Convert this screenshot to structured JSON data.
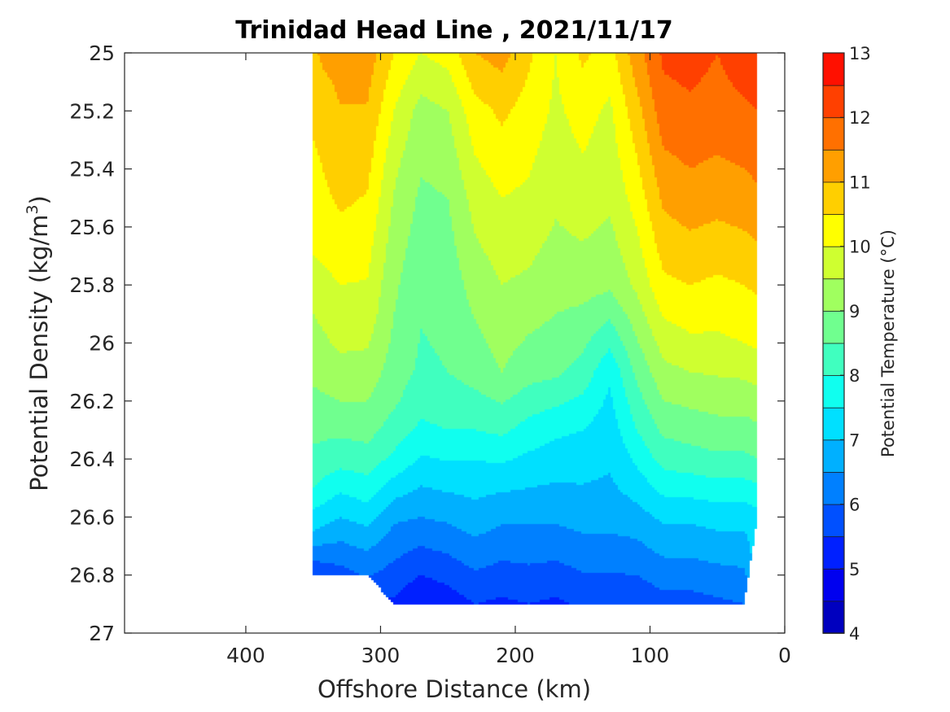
{
  "chart_data": {
    "type": "contour",
    "title": "Trinidad Head Line , 2021/11/17",
    "xlabel": "Offshore Distance (km)",
    "ylabel_main": "Potential Density (kg/m",
    "ylabel_sup": "3",
    "ylabel_close": ")",
    "colorbar_label": "Potential Temperature (°C)",
    "x_reversed": true,
    "xlim": [
      0,
      490
    ],
    "ylim": [
      25,
      27
    ],
    "y_reversed": true,
    "xticks": [
      400,
      300,
      200,
      100,
      0
    ],
    "xtick_labels": [
      "400",
      "300",
      "200",
      "100",
      "0"
    ],
    "yticks": [
      25,
      25.2,
      25.4,
      25.6,
      25.8,
      26,
      26.2,
      26.4,
      26.6,
      26.8,
      27
    ],
    "ytick_labels": [
      "25",
      "25.2",
      "25.4",
      "25.6",
      "25.8",
      "26",
      "26.2",
      "26.4",
      "26.6",
      "26.8",
      "27"
    ],
    "colorbar_range": [
      4,
      13
    ],
    "colorbar_ticks": [
      "4",
      "5",
      "6",
      "7",
      "8",
      "9",
      "10",
      "11",
      "12",
      "13"
    ],
    "level_step": 0.5,
    "colormap": "jet",
    "colors": [
      "#00008f",
      "#0000bf",
      "#0000ef",
      "#0020ff",
      "#0050ff",
      "#0080ff",
      "#00b0ff",
      "#00e0ff",
      "#10ffef",
      "#40ffbf",
      "#70ff8f",
      "#a0ff5f",
      "#cfff30",
      "#ffff00",
      "#ffcf00",
      "#ff9f00",
      "#ff7000",
      "#ff4000",
      "#ff1000",
      "#df0000",
      "#af0000"
    ],
    "data_extent": {
      "stations_km": [
        350,
        330,
        310,
        290,
        270,
        250,
        230,
        210,
        190,
        170,
        150,
        130,
        110,
        90,
        70,
        50,
        30,
        20
      ],
      "max_density_at_station": [
        26.8,
        26.8,
        26.8,
        26.9,
        26.9,
        26.9,
        26.9,
        26.9,
        26.9,
        26.9,
        26.9,
        26.9,
        26.9,
        26.9,
        26.9,
        26.9,
        26.9,
        26.6
      ]
    },
    "temperature_profiles": [
      {
        "x": 350,
        "density": [
          25.0,
          25.3,
          25.7,
          25.9,
          26.15,
          26.35,
          26.5,
          26.65,
          26.75,
          26.8
        ],
        "temperature": [
          10.9,
          10.5,
          10.0,
          9.5,
          9.0,
          8.5,
          8.0,
          7.0,
          6.0,
          5.7
        ]
      },
      {
        "x": 330,
        "density": [
          25.0,
          25.1,
          25.5,
          25.8,
          26.0,
          26.2,
          26.4,
          26.6,
          26.8
        ],
        "temperature": [
          11.5,
          11.1,
          10.6,
          10.0,
          9.6,
          9.0,
          8.2,
          7.0,
          5.8
        ]
      },
      {
        "x": 310,
        "density": [
          25.0,
          25.3,
          25.6,
          25.9,
          26.1,
          26.3,
          26.5,
          26.7,
          26.9
        ],
        "temperature": [
          11.3,
          10.8,
          10.3,
          9.8,
          9.3,
          8.7,
          7.8,
          6.6,
          5.5
        ]
      },
      {
        "x": 290,
        "density": [
          25.0,
          25.2,
          25.4,
          25.7,
          26.0,
          26.2,
          26.4,
          26.6,
          26.9
        ],
        "temperature": [
          10.5,
          10.0,
          9.6,
          9.2,
          8.9,
          8.6,
          7.9,
          6.6,
          5.4
        ]
      },
      {
        "x": 270,
        "density": [
          25.0,
          25.2,
          25.5,
          25.8,
          26.1,
          26.3,
          26.45,
          26.6,
          26.9
        ],
        "temperature": [
          10.0,
          9.3,
          8.9,
          8.6,
          8.4,
          7.9,
          7.2,
          6.5,
          5.0
        ]
      },
      {
        "x": 250,
        "density": [
          25.0,
          25.2,
          25.5,
          25.8,
          26.1,
          26.3,
          26.45,
          26.6,
          26.9
        ],
        "temperature": [
          10.2,
          9.5,
          9.0,
          8.7,
          8.5,
          8.0,
          7.3,
          6.6,
          5.2
        ]
      },
      {
        "x": 230,
        "density": [
          25.0,
          25.2,
          25.5,
          25.8,
          26.1,
          26.3,
          26.45,
          26.6,
          26.9
        ],
        "temperature": [
          11.0,
          10.3,
          9.7,
          9.2,
          8.7,
          8.0,
          7.3,
          6.8,
          5.5
        ]
      },
      {
        "x": 210,
        "density": [
          25.0,
          25.2,
          25.5,
          25.8,
          26.1,
          26.3,
          26.45,
          26.6,
          26.9
        ],
        "temperature": [
          11.2,
          10.6,
          10.0,
          9.5,
          9.0,
          8.1,
          7.3,
          6.6,
          5.4
        ]
      },
      {
        "x": 190,
        "density": [
          25.0,
          25.2,
          25.5,
          25.8,
          26.1,
          26.3,
          26.45,
          26.6,
          26.9
        ],
        "temperature": [
          10.6,
          10.3,
          9.9,
          9.4,
          8.7,
          7.8,
          7.2,
          6.6,
          5.5
        ]
      },
      {
        "x": 170,
        "density": [
          25.0,
          25.2,
          25.5,
          25.8,
          26.1,
          26.3,
          26.45,
          26.6,
          26.9
        ],
        "temperature": [
          10.0,
          9.9,
          9.6,
          9.2,
          8.6,
          7.6,
          7.1,
          6.6,
          5.4
        ]
      },
      {
        "x": 150,
        "density": [
          25.0,
          25.2,
          25.5,
          25.8,
          26.1,
          26.3,
          26.45,
          26.6,
          26.9
        ],
        "temperature": [
          10.6,
          10.2,
          9.8,
          9.2,
          8.3,
          7.5,
          7.1,
          6.7,
          5.6
        ]
      },
      {
        "x": 130,
        "density": [
          25.0,
          25.2,
          25.5,
          25.8,
          26.1,
          26.3,
          26.45,
          26.6,
          26.9
        ],
        "temperature": [
          10.3,
          9.9,
          9.6,
          9.1,
          7.6,
          7.2,
          7.0,
          6.7,
          5.6
        ]
      },
      {
        "x": 110,
        "density": [
          25.0,
          25.2,
          25.5,
          25.8,
          26.1,
          26.3,
          26.45,
          26.6,
          26.9
        ],
        "temperature": [
          11.3,
          10.8,
          10.2,
          9.6,
          8.6,
          8.0,
          7.4,
          6.8,
          5.6
        ]
      },
      {
        "x": 90,
        "density": [
          25.0,
          25.2,
          25.5,
          25.8,
          26.0,
          26.2,
          26.4,
          26.6,
          26.9
        ],
        "temperature": [
          12.1,
          11.8,
          11.1,
          10.4,
          9.7,
          9.0,
          8.2,
          7.1,
          5.8
        ]
      },
      {
        "x": 70,
        "density": [
          25.0,
          25.2,
          25.5,
          25.8,
          26.0,
          26.2,
          26.4,
          26.6,
          26.9
        ],
        "temperature": [
          12.2,
          11.9,
          11.3,
          10.5,
          9.9,
          9.1,
          8.3,
          7.1,
          5.8
        ]
      },
      {
        "x": 50,
        "density": [
          25.0,
          25.2,
          25.5,
          25.8,
          26.0,
          26.2,
          26.4,
          26.6,
          26.9
        ],
        "temperature": [
          12.0,
          11.8,
          11.2,
          10.4,
          9.9,
          9.2,
          8.4,
          7.2,
          5.9
        ]
      },
      {
        "x": 30,
        "density": [
          25.0,
          25.2,
          25.5,
          25.8,
          26.0,
          26.2,
          26.4,
          26.6,
          26.9
        ],
        "temperature": [
          12.3,
          11.9,
          11.3,
          10.5,
          10.0,
          9.2,
          8.4,
          7.2,
          6.0
        ]
      },
      {
        "x": 20,
        "density": [
          25.0,
          25.2,
          25.5,
          25.8,
          26.0,
          26.2,
          26.4,
          26.6
        ],
        "temperature": [
          12.4,
          12.0,
          11.4,
          10.6,
          10.1,
          9.3,
          8.5,
          7.3
        ]
      }
    ]
  }
}
